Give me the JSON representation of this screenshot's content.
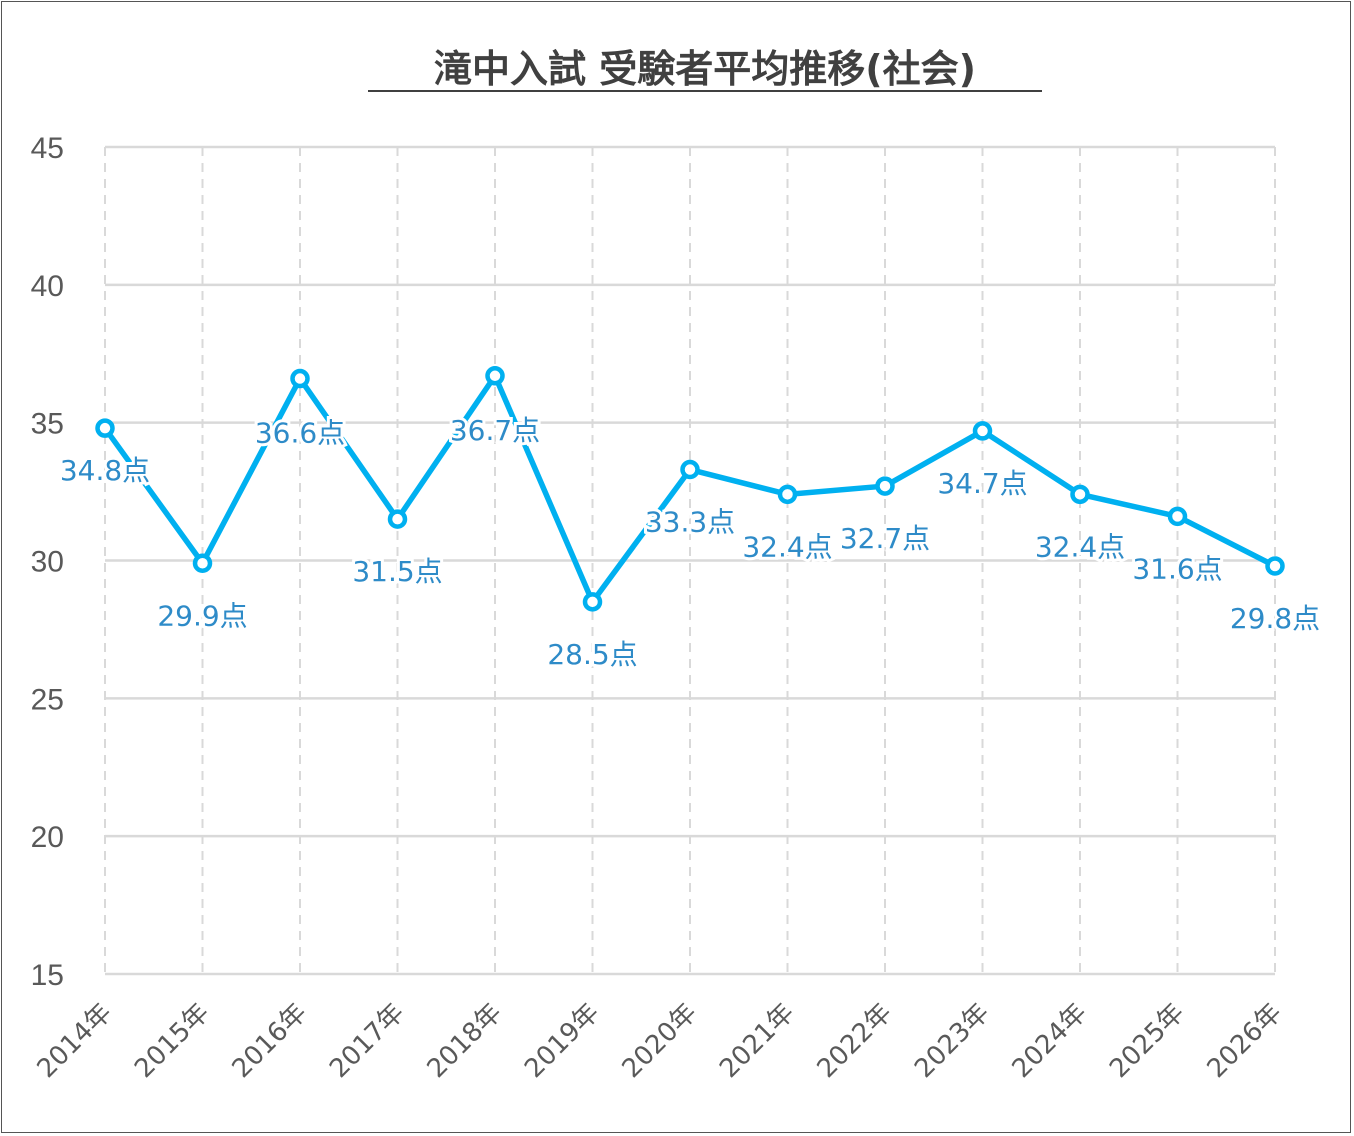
{
  "chart_data": {
    "type": "line",
    "title": "滝中入試 受験者平均推移(社会)",
    "categories": [
      "2014年",
      "2015年",
      "2016年",
      "2017年",
      "2018年",
      "2019年",
      "2020年",
      "2021年",
      "2022年",
      "2023年",
      "2024年",
      "2025年",
      "2026年"
    ],
    "values": [
      34.8,
      29.9,
      36.6,
      31.5,
      36.7,
      28.5,
      33.3,
      32.4,
      32.7,
      34.7,
      32.4,
      31.6,
      29.8
    ],
    "data_labels": [
      "34.8点",
      "29.9点",
      "36.6点",
      "31.5点",
      "36.7点",
      "28.5点",
      "33.3点",
      "32.4点",
      "32.7点",
      "34.7点",
      "32.4点",
      "31.6点",
      "29.8点"
    ],
    "ylim": [
      15,
      45
    ],
    "yticks": [
      "15",
      "20",
      "25",
      "30",
      "35",
      "40",
      "45"
    ],
    "xlabel": "",
    "ylabel": "",
    "grid": true,
    "legend": "none",
    "line_color": "#00B0F0",
    "label_color": "#2E8BC8"
  }
}
